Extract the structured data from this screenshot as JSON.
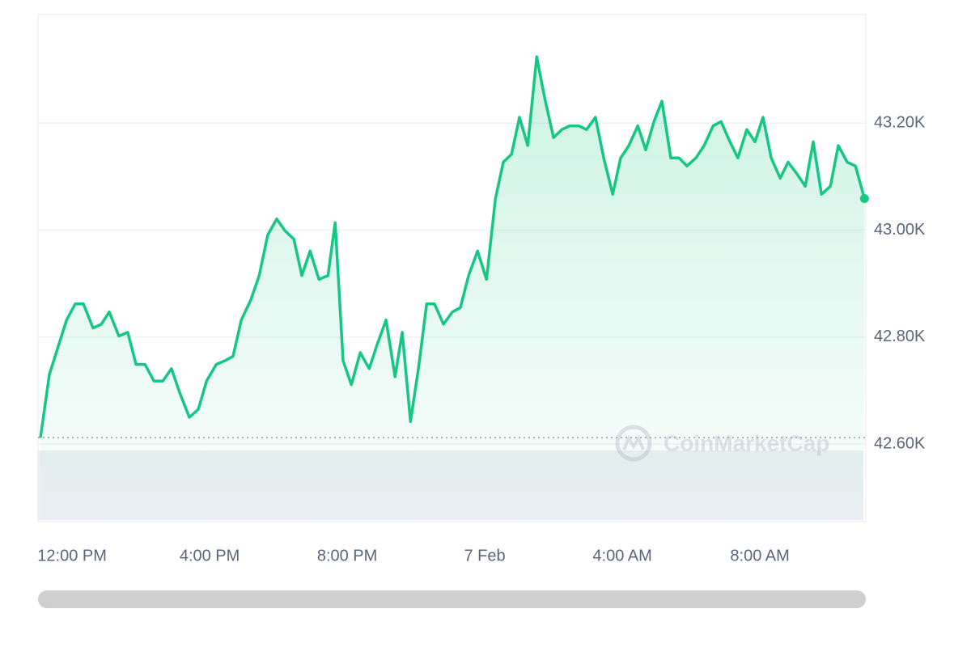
{
  "chart_data": {
    "type": "line",
    "watermark": "CoinMarketCap",
    "x": [
      11.08,
      11.34,
      11.58,
      11.84,
      12.09,
      12.33,
      12.61,
      12.85,
      13.08,
      13.36,
      13.62,
      13.86,
      14.12,
      14.38,
      14.64,
      14.89,
      15.13,
      15.41,
      15.67,
      15.91,
      16.19,
      16.45,
      16.68,
      16.92,
      17.2,
      17.44,
      17.69,
      17.95,
      18.19,
      18.45,
      18.68,
      18.92,
      19.18,
      19.44,
      19.65,
      19.88,
      20.12,
      20.38,
      20.64,
      20.87,
      21.13,
      21.39,
      21.6,
      21.84,
      22.07,
      22.31,
      22.54,
      22.8,
      23.06,
      23.29,
      23.53,
      23.79,
      24.05,
      24.31,
      24.54,
      24.78,
      25.01,
      25.25,
      25.51,
      25.74,
      26.0,
      26.24,
      26.47,
      26.73,
      26.96,
      27.22,
      27.46,
      27.72,
      27.95,
      28.19,
      28.45,
      28.68,
      28.92,
      29.15,
      29.41,
      29.65,
      29.88,
      30.14,
      30.38,
      30.64,
      30.87,
      31.13,
      31.36,
      31.62,
      31.86,
      32.09,
      32.33,
      32.59,
      32.82,
      33.08,
      33.32,
      33.55,
      33.79,
      34.05,
      34.28,
      34.54,
      34.78,
      35.04
    ],
    "series": [
      {
        "color": "#16c784",
        "values": [
          42612,
          42730,
          42779,
          42832,
          42862,
          42862,
          42817,
          42824,
          42847,
          42802,
          42809,
          42749,
          42749,
          42718,
          42718,
          42741,
          42696,
          42650,
          42665,
          42718,
          42749,
          42756,
          42764,
          42832,
          42870,
          42915,
          42991,
          43021,
          42999,
          42983,
          42915,
          42961,
          42908,
          42915,
          43014,
          42756,
          42711,
          42771,
          42741,
          42786,
          42832,
          42726,
          42809,
          42642,
          42741,
          42862,
          42862,
          42824,
          42847,
          42855,
          42915,
          42961,
          42908,
          43059,
          43127,
          43142,
          43211,
          43158,
          43324,
          43248,
          43173,
          43188,
          43195,
          43195,
          43188,
          43211,
          43135,
          43067,
          43135,
          43158,
          43195,
          43150,
          43203,
          43241,
          43135,
          43135,
          43120,
          43135,
          43158,
          43195,
          43203,
          43165,
          43135,
          43188,
          43165,
          43211,
          43135,
          43097,
          43127,
          43105,
          43082,
          43165,
          43067,
          43082,
          43158,
          43127,
          43120,
          43059
        ]
      }
    ],
    "xlim": [
      11.01,
      35.08
    ],
    "xticks": [
      {
        "value": 12,
        "label": "12:00 PM"
      },
      {
        "value": 16,
        "label": "4:00 PM"
      },
      {
        "value": 20,
        "label": "8:00 PM"
      },
      {
        "value": 24,
        "label": "7 Feb"
      },
      {
        "value": 28,
        "label": "4:00 AM"
      },
      {
        "value": 32,
        "label": "8:00 AM"
      }
    ],
    "ylim": [
      42455,
      43403
    ],
    "yticks": [
      {
        "value": 42600,
        "label": "42.60K"
      },
      {
        "value": 42800,
        "label": "42.80K"
      },
      {
        "value": 43000,
        "label": "43.00K"
      },
      {
        "value": 43200,
        "label": "43.20K"
      }
    ],
    "grid": true
  }
}
